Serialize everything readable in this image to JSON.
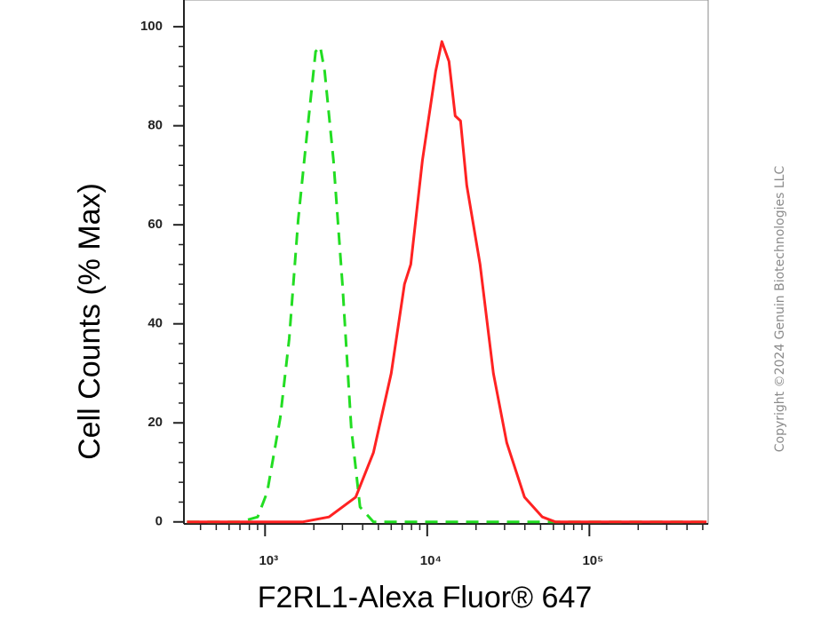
{
  "chart_data": {
    "type": "line",
    "xlabel": "F2RL1-Alexa Fluor® 647",
    "ylabel": "Cell Counts (% Max)",
    "watermark": "Copyright ©2024 Genuin Biotechnologies LLC",
    "xscale": "log",
    "xlim": [
      316,
      540000
    ],
    "ylim": [
      -0.4,
      105.4
    ],
    "xticks": [
      {
        "value": 1000,
        "label": "10³"
      },
      {
        "value": 10000,
        "label": "10⁴"
      },
      {
        "value": 100000,
        "label": "10⁵"
      }
    ],
    "xminorticks": [
      400,
      500,
      600,
      700,
      800,
      900,
      2000,
      3000,
      4000,
      5000,
      6000,
      7000,
      8000,
      9000,
      20000,
      30000,
      40000,
      50000,
      60000,
      70000,
      80000,
      90000,
      200000,
      300000,
      400000,
      500000
    ],
    "yticks": [
      0,
      20,
      40,
      60,
      80,
      100
    ],
    "yminorticks": [
      4,
      8,
      12,
      16,
      24,
      28,
      32,
      36,
      44,
      48,
      52,
      56,
      64,
      68,
      72,
      76,
      84,
      88,
      92,
      96
    ],
    "series": [
      {
        "color": "#22dd22",
        "dash": true,
        "x": [
          330,
          700,
          900,
          1030,
          1240,
          1410,
          1600,
          1810,
          2050,
          2190,
          2330,
          2640,
          3000,
          3400,
          3850,
          4660,
          20000,
          528000
        ],
        "values": [
          0,
          0,
          1,
          6,
          21,
          37,
          61,
          78,
          95,
          96,
          91,
          73,
          48,
          19,
          3,
          0,
          0,
          0
        ]
      },
      {
        "color": "#ff2222",
        "dash": false,
        "x": [
          330,
          1700,
          2480,
          3620,
          4660,
          6000,
          7240,
          7920,
          9340,
          11270,
          12310,
          13620,
          14880,
          16040,
          17530,
          21190,
          25600,
          30920,
          39800,
          51300,
          61900,
          528000
        ],
        "values": [
          0,
          0,
          1,
          5,
          14,
          30,
          48,
          52,
          73,
          91,
          97,
          93,
          82,
          81,
          68,
          52,
          30,
          16,
          5,
          1,
          0,
          0
        ]
      }
    ]
  }
}
